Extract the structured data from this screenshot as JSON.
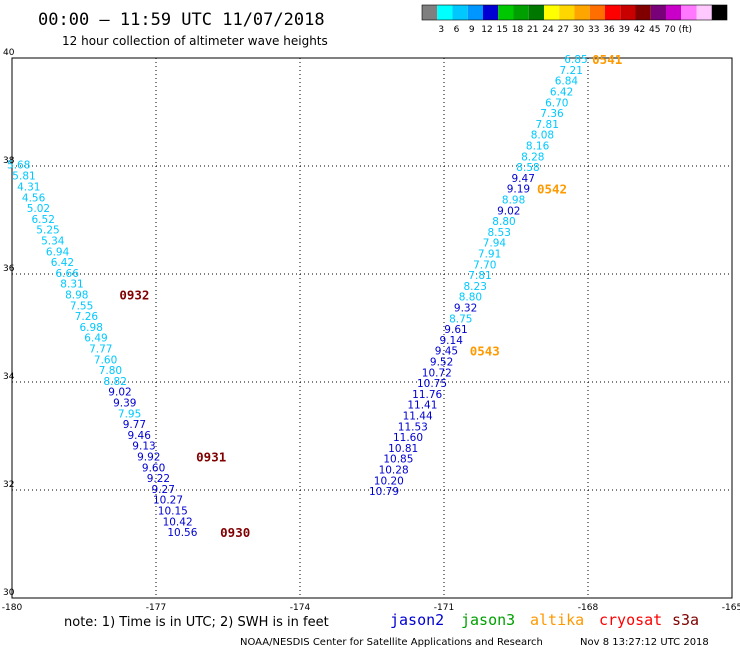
{
  "header": {
    "title": "00:00 – 11:59 UTC 11/07/2018",
    "subtitle": "12 hour collection of altimeter wave heights"
  },
  "colorbar": {
    "colors": [
      "#7f7f7f",
      "#00ffff",
      "#00c8ff",
      "#0096ff",
      "#0000d2",
      "#00c800",
      "#00a000",
      "#007800",
      "#ffff00",
      "#ffd700",
      "#ffa500",
      "#ff6e00",
      "#ff0000",
      "#c80000",
      "#800000",
      "#780078",
      "#c800c8",
      "#ff78ff",
      "#ffc8ff",
      "#000000"
    ],
    "labels": [
      "3",
      "6",
      "9",
      "12",
      "15",
      "18",
      "21",
      "24",
      "27",
      "30",
      "33",
      "36",
      "39",
      "42",
      "45",
      "70",
      "(ft)"
    ]
  },
  "chart_data": {
    "type": "scatter",
    "xlim": [
      -180,
      -165
    ],
    "ylim": [
      30,
      40
    ],
    "x_ticks": [
      "-180",
      "-177",
      "-174",
      "-171",
      "-168",
      "-165"
    ],
    "y_ticks": [
      "30",
      "32",
      "34",
      "36",
      "38",
      "40"
    ],
    "grid": true,
    "tracks": [
      {
        "name": "west",
        "points": [
          {
            "lon": -179.86,
            "lat": 38.03,
            "v": "5.68",
            "c": "#00c8ff"
          },
          {
            "lon": -179.75,
            "lat": 37.82,
            "v": "5.81",
            "c": "#00c8ff"
          },
          {
            "lon": -179.65,
            "lat": 37.62,
            "v": "4.31",
            "c": "#00c8ff"
          },
          {
            "lon": -179.55,
            "lat": 37.42,
            "v": "4.56",
            "c": "#00c8ff"
          },
          {
            "lon": -179.45,
            "lat": 37.22,
            "v": "5.02",
            "c": "#00c8ff"
          },
          {
            "lon": -179.35,
            "lat": 37.02,
            "v": "6.52",
            "c": "#00c8ff"
          },
          {
            "lon": -179.25,
            "lat": 36.82,
            "v": "5.25",
            "c": "#00c8ff"
          },
          {
            "lon": -179.15,
            "lat": 36.62,
            "v": "5.34",
            "c": "#00c8ff"
          },
          {
            "lon": -179.05,
            "lat": 36.42,
            "v": "6.94",
            "c": "#00c8ff"
          },
          {
            "lon": -178.95,
            "lat": 36.22,
            "v": "6.42",
            "c": "#00c8ff"
          },
          {
            "lon": -178.85,
            "lat": 36.02,
            "v": "6.66",
            "c": "#00c8ff"
          },
          {
            "lon": -178.75,
            "lat": 35.82,
            "v": "8.31",
            "c": "#00c8ff"
          },
          {
            "lon": -178.65,
            "lat": 35.62,
            "v": "8.98",
            "c": "#00c8ff"
          },
          {
            "lon": -178.55,
            "lat": 35.42,
            "v": "7.55",
            "c": "#00c8ff"
          },
          {
            "lon": -178.45,
            "lat": 35.22,
            "v": "7.26",
            "c": "#00c8ff"
          },
          {
            "lon": -178.35,
            "lat": 35.02,
            "v": "6.98",
            "c": "#00c8ff"
          },
          {
            "lon": -178.25,
            "lat": 34.82,
            "v": "6.49",
            "c": "#00c8ff"
          },
          {
            "lon": -178.15,
            "lat": 34.62,
            "v": "7.77",
            "c": "#00c8ff"
          },
          {
            "lon": -178.05,
            "lat": 34.42,
            "v": "7.60",
            "c": "#00c8ff"
          },
          {
            "lon": -177.95,
            "lat": 34.22,
            "v": "7.80",
            "c": "#00c8ff"
          },
          {
            "lon": -177.85,
            "lat": 34.02,
            "v": "8.82",
            "c": "#00c8ff"
          },
          {
            "lon": -177.75,
            "lat": 33.82,
            "v": "9.02",
            "c": "#0000d2"
          },
          {
            "lon": -177.65,
            "lat": 33.62,
            "v": "9.39",
            "c": "#0000d2"
          },
          {
            "lon": -177.55,
            "lat": 33.42,
            "v": "7.95",
            "c": "#00c8ff"
          },
          {
            "lon": -177.45,
            "lat": 33.22,
            "v": "9.77",
            "c": "#0000d2"
          },
          {
            "lon": -177.35,
            "lat": 33.02,
            "v": "9.46",
            "c": "#0000d2"
          },
          {
            "lon": -177.25,
            "lat": 32.82,
            "v": "9.13",
            "c": "#0000d2"
          },
          {
            "lon": -177.15,
            "lat": 32.62,
            "v": "9.92",
            "c": "#0000d2"
          },
          {
            "lon": -177.05,
            "lat": 32.42,
            "v": "9.60",
            "c": "#0000d2"
          },
          {
            "lon": -176.95,
            "lat": 32.22,
            "v": "9.22",
            "c": "#0000d2"
          },
          {
            "lon": -176.85,
            "lat": 32.02,
            "v": "9.27",
            "c": "#0000d2"
          },
          {
            "lon": -176.75,
            "lat": 31.82,
            "v": "10.27",
            "c": "#0000d2"
          },
          {
            "lon": -176.65,
            "lat": 31.62,
            "v": "10.15",
            "c": "#0000d2"
          },
          {
            "lon": -176.55,
            "lat": 31.42,
            "v": "10.42",
            "c": "#0000d2"
          },
          {
            "lon": -176.45,
            "lat": 31.22,
            "v": "10.56",
            "c": "#0000d2"
          }
        ],
        "pass_labels": [
          {
            "lon": -177.45,
            "lat": 35.62,
            "text": "0932",
            "c": "#800000"
          },
          {
            "lon": -175.85,
            "lat": 32.62,
            "text": "0931",
            "c": "#800000"
          },
          {
            "lon": -175.35,
            "lat": 31.22,
            "text": "0930",
            "c": "#800000"
          }
        ]
      },
      {
        "name": "east",
        "points": [
          {
            "lon": -168.25,
            "lat": 39.98,
            "v": "6.85",
            "c": "#00c8ff"
          },
          {
            "lon": -168.35,
            "lat": 39.78,
            "v": "7.21",
            "c": "#00c8ff"
          },
          {
            "lon": -168.45,
            "lat": 39.58,
            "v": "6.84",
            "c": "#00c8ff"
          },
          {
            "lon": -168.55,
            "lat": 39.38,
            "v": "6.42",
            "c": "#00c8ff"
          },
          {
            "lon": -168.65,
            "lat": 39.18,
            "v": "6.70",
            "c": "#00c8ff"
          },
          {
            "lon": -168.75,
            "lat": 38.98,
            "v": "7.36",
            "c": "#00c8ff"
          },
          {
            "lon": -168.85,
            "lat": 38.78,
            "v": "7.81",
            "c": "#00c8ff"
          },
          {
            "lon": -168.95,
            "lat": 38.58,
            "v": "8.08",
            "c": "#00c8ff"
          },
          {
            "lon": -169.05,
            "lat": 38.38,
            "v": "8.16",
            "c": "#00c8ff"
          },
          {
            "lon": -169.15,
            "lat": 38.18,
            "v": "8.28",
            "c": "#00c8ff"
          },
          {
            "lon": -169.25,
            "lat": 37.98,
            "v": "8.58",
            "c": "#00c8ff"
          },
          {
            "lon": -169.35,
            "lat": 37.78,
            "v": "9.47",
            "c": "#0000d2"
          },
          {
            "lon": -169.45,
            "lat": 37.58,
            "v": "9.19",
            "c": "#0000d2"
          },
          {
            "lon": -169.55,
            "lat": 37.38,
            "v": "8.98",
            "c": "#00c8ff"
          },
          {
            "lon": -169.65,
            "lat": 37.18,
            "v": "9.02",
            "c": "#0000d2"
          },
          {
            "lon": -169.75,
            "lat": 36.98,
            "v": "8.80",
            "c": "#00c8ff"
          },
          {
            "lon": -169.85,
            "lat": 36.78,
            "v": "8.53",
            "c": "#00c8ff"
          },
          {
            "lon": -169.95,
            "lat": 36.58,
            "v": "7.94",
            "c": "#00c8ff"
          },
          {
            "lon": -170.05,
            "lat": 36.38,
            "v": "7.91",
            "c": "#00c8ff"
          },
          {
            "lon": -170.15,
            "lat": 36.18,
            "v": "7.70",
            "c": "#00c8ff"
          },
          {
            "lon": -170.25,
            "lat": 35.98,
            "v": "7.81",
            "c": "#00c8ff"
          },
          {
            "lon": -170.35,
            "lat": 35.78,
            "v": "8.23",
            "c": "#00c8ff"
          },
          {
            "lon": -170.45,
            "lat": 35.58,
            "v": "8.80",
            "c": "#00c8ff"
          },
          {
            "lon": -170.55,
            "lat": 35.38,
            "v": "9.32",
            "c": "#0000d2"
          },
          {
            "lon": -170.65,
            "lat": 35.18,
            "v": "8.75",
            "c": "#00c8ff"
          },
          {
            "lon": -170.75,
            "lat": 34.98,
            "v": "9.61",
            "c": "#0000d2"
          },
          {
            "lon": -170.85,
            "lat": 34.78,
            "v": "9.14",
            "c": "#0000d2"
          },
          {
            "lon": -170.95,
            "lat": 34.58,
            "v": "9.45",
            "c": "#0000d2"
          },
          {
            "lon": -171.05,
            "lat": 34.38,
            "v": "9.52",
            "c": "#0000d2"
          },
          {
            "lon": -171.15,
            "lat": 34.18,
            "v": "10.72",
            "c": "#0000d2"
          },
          {
            "lon": -171.25,
            "lat": 33.98,
            "v": "10.75",
            "c": "#0000d2"
          },
          {
            "lon": -171.35,
            "lat": 33.78,
            "v": "11.76",
            "c": "#0000d2"
          },
          {
            "lon": -171.45,
            "lat": 33.58,
            "v": "11.41",
            "c": "#0000d2"
          },
          {
            "lon": -171.55,
            "lat": 33.38,
            "v": "11.44",
            "c": "#0000d2"
          },
          {
            "lon": -171.65,
            "lat": 33.18,
            "v": "11.53",
            "c": "#0000d2"
          },
          {
            "lon": -171.75,
            "lat": 32.98,
            "v": "11.60",
            "c": "#0000d2"
          },
          {
            "lon": -171.85,
            "lat": 32.78,
            "v": "10.81",
            "c": "#0000d2"
          },
          {
            "lon": -171.95,
            "lat": 32.58,
            "v": "10.85",
            "c": "#0000d2"
          },
          {
            "lon": -172.05,
            "lat": 32.38,
            "v": "10.28",
            "c": "#0000d2"
          },
          {
            "lon": -172.15,
            "lat": 32.18,
            "v": "10.20",
            "c": "#0000d2"
          },
          {
            "lon": -172.25,
            "lat": 31.98,
            "v": "10.79",
            "c": "#0000d2"
          }
        ],
        "pass_labels": [
          {
            "lon": -167.6,
            "lat": 39.98,
            "text": "0541",
            "c": "#ff9900"
          },
          {
            "lon": -168.75,
            "lat": 37.58,
            "text": "0542",
            "c": "#ff9900"
          },
          {
            "lon": -170.15,
            "lat": 34.58,
            "text": "0543",
            "c": "#ff9900"
          }
        ]
      }
    ]
  },
  "footer": {
    "note": "note: 1) Time is in UTC; 2) SWH is in feet",
    "legend": [
      {
        "name": "jason2",
        "color": "#0000d2"
      },
      {
        "name": "jason3",
        "color": "#00a000"
      },
      {
        "name": "altika",
        "color": "#ff9900"
      },
      {
        "name": "cryosat",
        "color": "#ff0000"
      },
      {
        "name": "s3a",
        "color": "#800000"
      }
    ],
    "credit": "NOAA/NESDIS Center for Satellite Applications and Research",
    "timestamp": "Nov  8 13:27:12 UTC 2018"
  }
}
